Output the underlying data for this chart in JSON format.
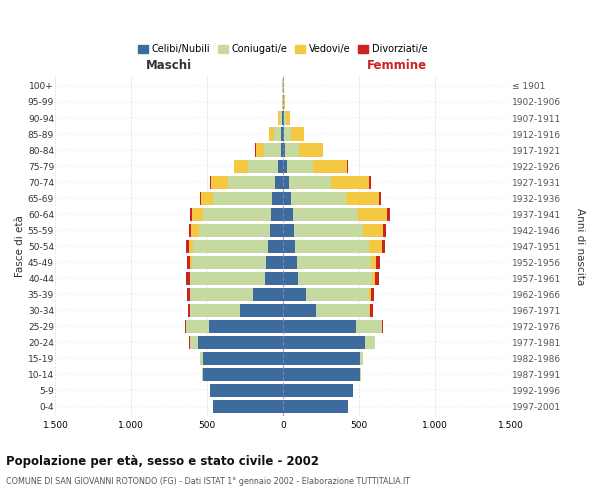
{
  "age_groups": [
    "0-4",
    "5-9",
    "10-14",
    "15-19",
    "20-24",
    "25-29",
    "30-34",
    "35-39",
    "40-44",
    "45-49",
    "50-54",
    "55-59",
    "60-64",
    "65-69",
    "70-74",
    "75-79",
    "80-84",
    "85-89",
    "90-94",
    "95-99",
    "100+"
  ],
  "birth_years": [
    "1997-2001",
    "1992-1996",
    "1987-1991",
    "1982-1986",
    "1977-1981",
    "1972-1976",
    "1967-1971",
    "1962-1966",
    "1957-1961",
    "1952-1956",
    "1947-1951",
    "1942-1946",
    "1937-1941",
    "1932-1936",
    "1927-1931",
    "1922-1926",
    "1917-1921",
    "1912-1916",
    "1907-1911",
    "1902-1906",
    "≤ 1901"
  ],
  "males": {
    "celibi": [
      460,
      480,
      530,
      530,
      560,
      490,
      280,
      200,
      120,
      110,
      100,
      85,
      80,
      70,
      55,
      30,
      15,
      10,
      5,
      2,
      2
    ],
    "coniugati": [
      1,
      2,
      5,
      15,
      55,
      150,
      330,
      410,
      490,
      490,
      490,
      470,
      450,
      390,
      310,
      200,
      110,
      50,
      15,
      5,
      2
    ],
    "vedovi": [
      0,
      0,
      0,
      0,
      0,
      1,
      2,
      3,
      5,
      10,
      30,
      50,
      70,
      80,
      110,
      90,
      55,
      30,
      10,
      2,
      1
    ],
    "divorziati": [
      0,
      0,
      0,
      1,
      2,
      5,
      15,
      20,
      25,
      25,
      20,
      15,
      15,
      10,
      5,
      3,
      2,
      1,
      0,
      0,
      0
    ]
  },
  "females": {
    "nubili": [
      430,
      460,
      510,
      510,
      540,
      480,
      220,
      150,
      100,
      90,
      80,
      70,
      65,
      55,
      40,
      25,
      15,
      10,
      5,
      2,
      2
    ],
    "coniugate": [
      1,
      2,
      5,
      15,
      65,
      170,
      350,
      420,
      490,
      490,
      490,
      460,
      430,
      360,
      280,
      170,
      90,
      40,
      12,
      4,
      2
    ],
    "vedove": [
      0,
      0,
      0,
      0,
      1,
      2,
      4,
      8,
      15,
      35,
      80,
      130,
      190,
      220,
      250,
      230,
      160,
      90,
      30,
      8,
      3
    ],
    "divorziate": [
      0,
      0,
      0,
      1,
      3,
      8,
      18,
      25,
      30,
      25,
      20,
      18,
      18,
      12,
      8,
      5,
      2,
      1,
      0,
      0,
      0
    ]
  },
  "colors": {
    "celibi": "#3d6b9e",
    "coniugati": "#c5d9a0",
    "vedovi": "#f5c842",
    "divorziati": "#cc2222"
  },
  "xlim": 1500,
  "title": "Popolazione per età, sesso e stato civile - 2002",
  "subtitle": "COMUNE DI SAN GIOVANNI ROTONDO (FG) - Dati ISTAT 1° gennaio 2002 - Elaborazione TUTTITALIA.IT",
  "ylabel_left": "Fasce di età",
  "ylabel_right": "Anni di nascita",
  "legend_labels": [
    "Celibi/Nubili",
    "Coniugati/e",
    "Vedovi/e",
    "Divorziati/e"
  ],
  "xticks": [
    -1500,
    -1000,
    -500,
    0,
    500,
    1000,
    1500
  ],
  "xtick_labels": [
    "1.500",
    "1.000",
    "500",
    "0",
    "500",
    "1.000",
    "1.500"
  ],
  "background_color": "#ffffff",
  "grid_color": "#cccccc",
  "maschi_color": "#333333",
  "femmine_color": "#cc2222"
}
